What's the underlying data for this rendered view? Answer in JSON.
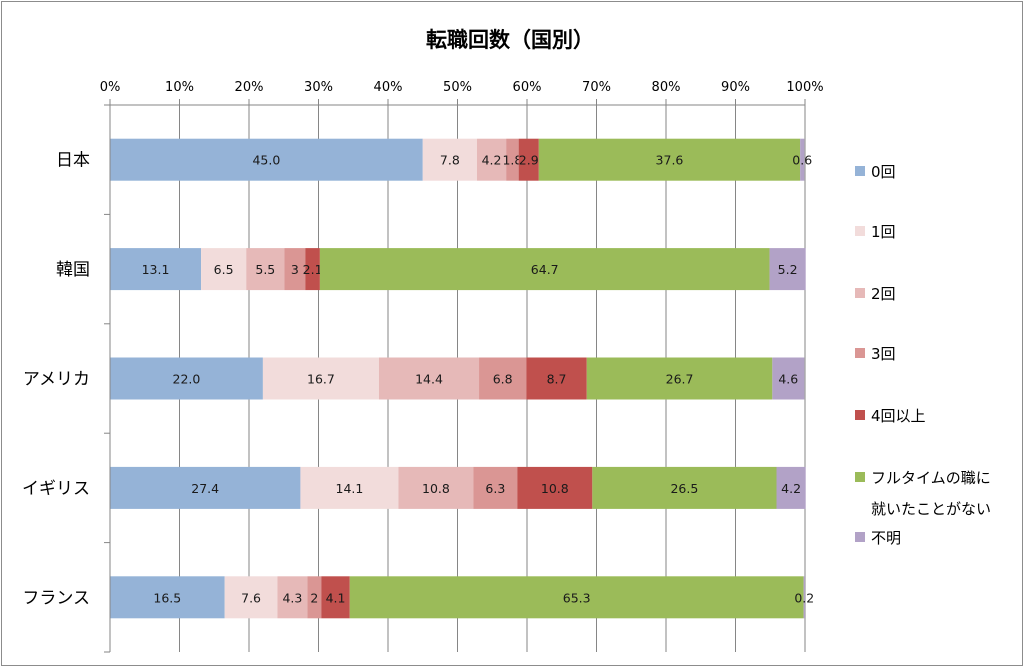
{
  "chart_data": {
    "type": "bar",
    "orientation": "horizontal",
    "stacked": true,
    "percent_stacked": true,
    "title": "転職回数（国別）",
    "categories": [
      "日本",
      "韓国",
      "アメリカ",
      "イギリス",
      "フランス"
    ],
    "x_ticks": [
      "0%",
      "10%",
      "20%",
      "30%",
      "40%",
      "50%",
      "60%",
      "70%",
      "80%",
      "90%",
      "100%"
    ],
    "xlim": [
      0,
      100
    ],
    "grid": true,
    "legend_position": "right",
    "series": [
      {
        "name": "0回",
        "color": "#95b3d7",
        "values": [
          45.0,
          13.1,
          22.0,
          27.4,
          16.5
        ],
        "labels": [
          "45.0",
          "13.1",
          "22.0",
          "27.4",
          "16.5"
        ]
      },
      {
        "name": "1回",
        "color": "#f2dcdb",
        "values": [
          7.8,
          6.5,
          16.7,
          14.1,
          7.6
        ],
        "labels": [
          "7.8",
          "6.5",
          "16.7",
          "14.1",
          "7.6"
        ]
      },
      {
        "name": "2回",
        "color": "#e6b9b8",
        "values": [
          4.2,
          5.5,
          14.4,
          10.8,
          4.3
        ],
        "labels": [
          "4.2",
          "5.5",
          "14.4",
          "10.8",
          "4.3"
        ]
      },
      {
        "name": "3回",
        "color": "#da9694",
        "values": [
          1.8,
          3,
          6.8,
          6.3,
          2
        ],
        "labels": [
          "1.8",
          "3",
          "6.8",
          "6.3",
          "2"
        ]
      },
      {
        "name": "4回以上",
        "color": "#c0504d",
        "values": [
          2.9,
          2.1,
          8.7,
          10.8,
          4.1
        ],
        "labels": [
          "2.9",
          "2.1",
          "8.7",
          "10.8",
          "4.1"
        ]
      },
      {
        "name": "フルタイムの職に就いたことがない",
        "color": "#9bbb59",
        "values": [
          37.6,
          64.7,
          26.7,
          26.5,
          65.3
        ],
        "labels": [
          "37.6",
          "64.7",
          "26.7",
          "26.5",
          "65.3"
        ]
      },
      {
        "name": "不明",
        "color": "#b2a2c7",
        "values": [
          0.6,
          5.2,
          4.6,
          4.2,
          0.2
        ],
        "labels": [
          "0.6",
          "5.2",
          "4.6",
          "4.2",
          "0.2"
        ]
      }
    ],
    "legend_lines": {
      "5": [
        "フルタイムの職に",
        "就いたことがない"
      ]
    }
  }
}
